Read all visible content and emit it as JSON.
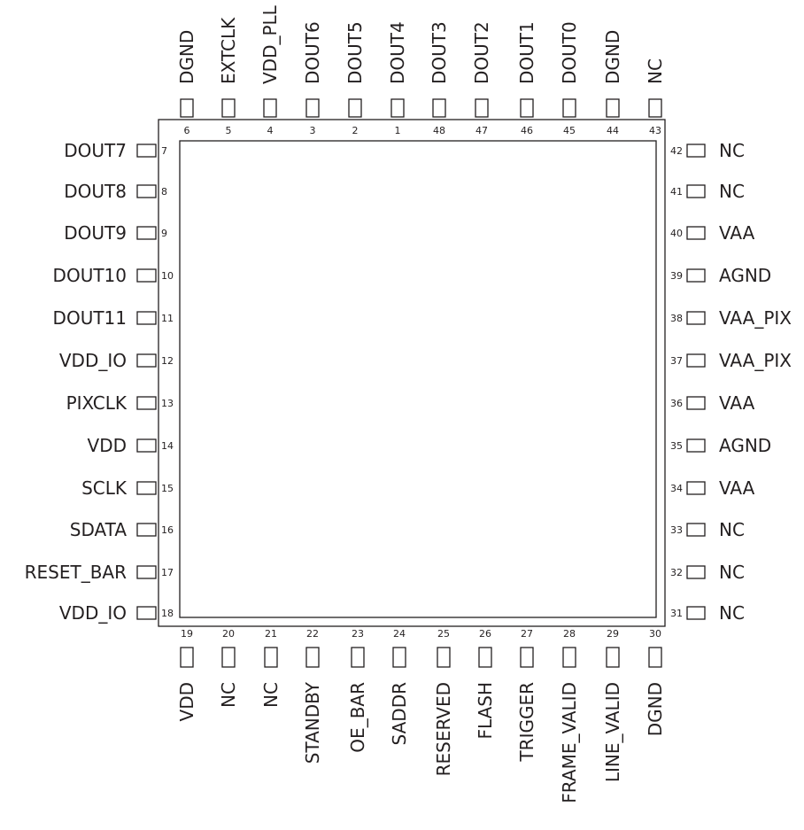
{
  "top_pins": [
    {
      "num": "6",
      "label": "DGND",
      "style": "sc"
    },
    {
      "num": "5",
      "label": "EXTCLK",
      "style": ""
    },
    {
      "num": "4",
      "label": "VDD_PLL",
      "style": "sc"
    },
    {
      "num": "3",
      "label": "DOUT6",
      "style": "sc"
    },
    {
      "num": "2",
      "label": "DOUT5",
      "style": "sc"
    },
    {
      "num": "1",
      "label": "DOUT4",
      "style": "sc"
    },
    {
      "num": "48",
      "label": "DOUT3",
      "style": "sc"
    },
    {
      "num": "47",
      "label": "DOUT2",
      "style": "sc"
    },
    {
      "num": "46",
      "label": "DOUT1",
      "style": "sc"
    },
    {
      "num": "45",
      "label": "DOUT0",
      "style": "sc"
    },
    {
      "num": "44",
      "label": "DGND",
      "style": "sc"
    },
    {
      "num": "43",
      "label": "NC",
      "style": ""
    }
  ],
  "left_pins": [
    {
      "num": "7",
      "label": "DOUT7",
      "style": "sc"
    },
    {
      "num": "8",
      "label": "DOUT8",
      "style": "sc"
    },
    {
      "num": "9",
      "label": "DOUT9",
      "style": "sc"
    },
    {
      "num": "10",
      "label": "DOUT10",
      "style": "sc"
    },
    {
      "num": "11",
      "label": "DOUT11",
      "style": "sc"
    },
    {
      "num": "12",
      "label": "VDD_IO",
      "style": "sc"
    },
    {
      "num": "13",
      "label": "PIXCLK",
      "style": ""
    },
    {
      "num": "14",
      "label": "VDD",
      "style": "sc"
    },
    {
      "num": "15",
      "label": "SCLK",
      "style": "sc"
    },
    {
      "num": "16",
      "label": "SDATA",
      "style": "sc"
    },
    {
      "num": "17",
      "label": "RESET_BAR",
      "style": ""
    },
    {
      "num": "18",
      "label": "VDD_IO",
      "style": "sc"
    }
  ],
  "right_pins": [
    {
      "num": "42",
      "label": "NC",
      "style": ""
    },
    {
      "num": "41",
      "label": "NC",
      "style": ""
    },
    {
      "num": "40",
      "label": "VAA",
      "style": "sc"
    },
    {
      "num": "39",
      "label": "AGND",
      "style": "sc"
    },
    {
      "num": "38",
      "label": "VAA_PIX",
      "style": "sc"
    },
    {
      "num": "37",
      "label": "VAA_PIX",
      "style": "sc"
    },
    {
      "num": "36",
      "label": "VAA",
      "style": "sc"
    },
    {
      "num": "35",
      "label": "AGND",
      "style": "sc"
    },
    {
      "num": "34",
      "label": "VAA",
      "style": "sc"
    },
    {
      "num": "33",
      "label": "NC",
      "style": ""
    },
    {
      "num": "32",
      "label": "NC",
      "style": ""
    },
    {
      "num": "31",
      "label": "NC",
      "style": ""
    }
  ],
  "bottom_pins": [
    {
      "num": "19",
      "label": "VDD",
      "style": "sc"
    },
    {
      "num": "20",
      "label": "NC",
      "style": ""
    },
    {
      "num": "21",
      "label": "NC",
      "style": ""
    },
    {
      "num": "22",
      "label": "STANDBY",
      "style": ""
    },
    {
      "num": "23",
      "label": "OE_BAR",
      "style": ""
    },
    {
      "num": "24",
      "label": "SADDR",
      "style": "sc"
    },
    {
      "num": "25",
      "label": "RESERVED",
      "style": ""
    },
    {
      "num": "26",
      "label": "FLASH",
      "style": ""
    },
    {
      "num": "27",
      "label": "TRIGGER",
      "style": ""
    },
    {
      "num": "28",
      "label": "FRAME_VALID",
      "style": ""
    },
    {
      "num": "29",
      "label": "LINE_VALID",
      "style": ""
    },
    {
      "num": "30",
      "label": "DGND",
      "style": "sc"
    }
  ],
  "colors": {
    "line": "#231f20",
    "text": "#231f20",
    "background": "#ffffff"
  }
}
